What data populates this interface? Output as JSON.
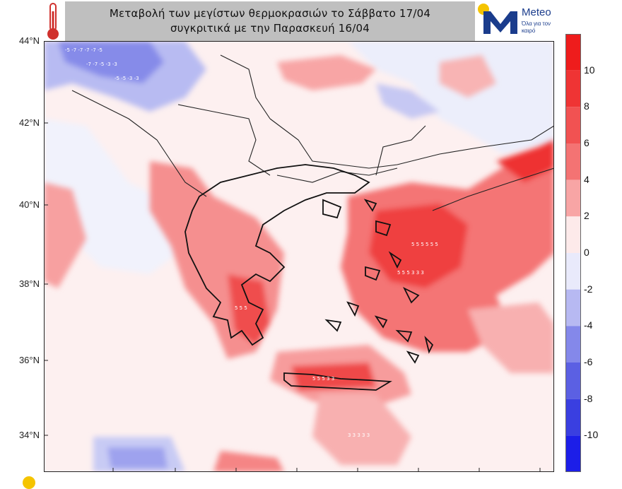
{
  "header": {
    "title_line1": "Μεταβολή των μεγίστων θερμοκρασιών το Σάββατο 17/04",
    "title_line2": "συγκριτικά με την Παρασκευή 16/04"
  },
  "logo": {
    "brand": "Meteo",
    "tagline": "Όλα για τον καιρό",
    "color": "#1a3c8c"
  },
  "map": {
    "latitude_labels": [
      "44°N",
      "42°N",
      "40°N",
      "38°N",
      "36°N",
      "34°N"
    ],
    "latitude_values": [
      44,
      42,
      40,
      38,
      36,
      34
    ],
    "lat_range": [
      32.9,
      44.0
    ],
    "field": "max temperature change (°C)"
  },
  "colorbar": {
    "labels": [
      "10",
      "8",
      "6",
      "4",
      "2",
      "0",
      "-2",
      "-4",
      "-6",
      "-8",
      "-10"
    ],
    "bins": [
      {
        "range": "10 to 12",
        "color": "#ee1c1c"
      },
      {
        "range": "8 to 10",
        "color": "#ef3434"
      },
      {
        "range": "6 to 8",
        "color": "#f15252"
      },
      {
        "range": "4 to 6",
        "color": "#f47373"
      },
      {
        "range": "2 to 4",
        "color": "#f8a5a5"
      },
      {
        "range": "0 to 2",
        "color": "#fdeaea"
      },
      {
        "range": "-2 to 0",
        "color": "#e9eafb"
      },
      {
        "range": "-4 to -2",
        "color": "#b7b9f2"
      },
      {
        "range": "-6 to -4",
        "color": "#8488ea"
      },
      {
        "range": "-8 to -6",
        "color": "#5b60e3"
      },
      {
        "range": "-10 to -8",
        "color": "#3a3fe0"
      },
      {
        "range": "-12 to -10",
        "color": "#1c1ee8"
      }
    ]
  }
}
